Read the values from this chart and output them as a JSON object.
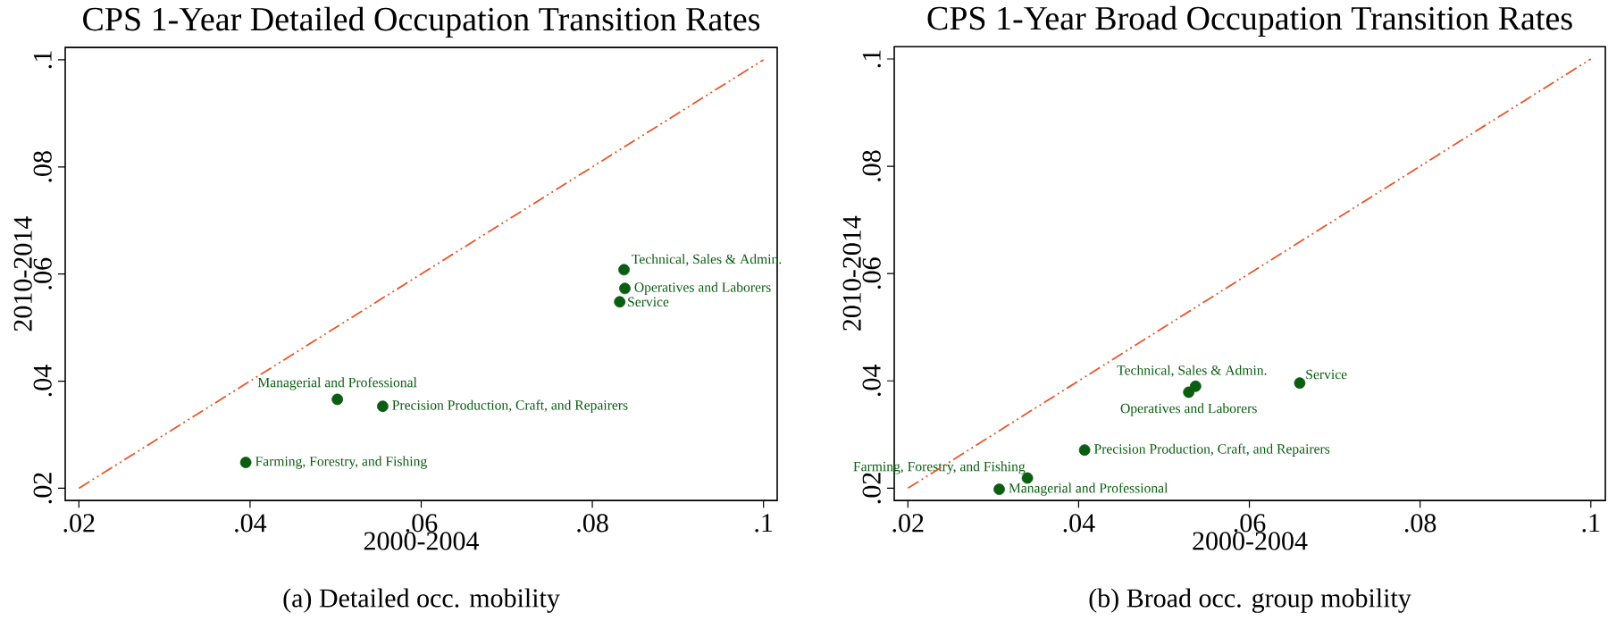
{
  "chart_data": [
    {
      "type": "scatter",
      "title": "CPS 1-Year Detailed Occupation Transition Rates",
      "xlabel": "2000-2004",
      "ylabel": "2010-2014",
      "xlim": [
        0.0184,
        0.1016
      ],
      "ylim": [
        0.0177,
        0.1023
      ],
      "xticks": [
        {
          "value": 0.02,
          "label": ".02"
        },
        {
          "value": 0.04,
          "label": ".04"
        },
        {
          "value": 0.06,
          "label": ".06"
        },
        {
          "value": 0.08,
          "label": ".08"
        },
        {
          "value": 0.1,
          "label": ".1"
        }
      ],
      "yticks": [
        {
          "value": 0.02,
          "label": ".02"
        },
        {
          "value": 0.04,
          "label": ".04"
        },
        {
          "value": 0.06,
          "label": ".06"
        },
        {
          "value": 0.08,
          "label": ".08"
        },
        {
          "value": 0.1,
          "label": ".1"
        }
      ],
      "series": [
        {
          "name": "Farming, Forestry, and Fishing",
          "color": "#0b5d12",
          "marker": "circle",
          "x": [
            0.0395
          ],
          "values": [
            0.0248
          ]
        },
        {
          "name": "Managerial and Professional",
          "color": "#0b5d12",
          "marker": "circle",
          "x": [
            0.0502
          ],
          "values": [
            0.0366
          ]
        },
        {
          "name": "Precision Production, Craft, and Repairers",
          "color": "#0b5d12",
          "marker": "circle",
          "x": [
            0.0555
          ],
          "values": [
            0.0353
          ]
        },
        {
          "name": "Technical, Sales & Admin.",
          "color": "#0b5d12",
          "marker": "circle",
          "x": [
            0.0837
          ],
          "values": [
            0.0608
          ]
        },
        {
          "name": "Operatives and Laborers",
          "color": "#0b5d12",
          "marker": "circle",
          "x": [
            0.0838
          ],
          "values": [
            0.0573
          ]
        },
        {
          "name": "Service",
          "color": "#0b5d12",
          "marker": "circle",
          "x": [
            0.0832
          ],
          "values": [
            0.0548
          ]
        },
        {
          "type": "line",
          "color": "#e8562a",
          "line_style": "dashed",
          "marker": "none",
          "x": [
            0.02,
            0.1
          ],
          "values": [
            0.02,
            0.1
          ]
        }
      ],
      "annotations": [
        "(a) Detailed occ. mobility"
      ]
    },
    {
      "type": "scatter",
      "title": "CPS 1-Year Broad Occupation Transition Rates",
      "xlabel": "2000-2004",
      "ylabel": "2010-2014",
      "xlim": [
        0.0184,
        0.1017
      ],
      "ylim": [
        0.0177,
        0.1023
      ],
      "xticks": [
        {
          "value": 0.02,
          "label": ".02"
        },
        {
          "value": 0.04,
          "label": ".04"
        },
        {
          "value": 0.06,
          "label": ".06"
        },
        {
          "value": 0.08,
          "label": ".08"
        },
        {
          "value": 0.1,
          "label": ".1"
        }
      ],
      "yticks": [
        {
          "value": 0.02,
          "label": ".02"
        },
        {
          "value": 0.04,
          "label": ".04"
        },
        {
          "value": 0.06,
          "label": ".06"
        },
        {
          "value": 0.08,
          "label": ".08"
        },
        {
          "value": 0.1,
          "label": ".1"
        }
      ],
      "series": [
        {
          "name": "Farming, Forestry, and Fishing",
          "color": "#0b5d12",
          "marker": "circle",
          "x": [
            0.034
          ],
          "values": [
            0.0219
          ]
        },
        {
          "name": "Managerial and Professional",
          "color": "#0b5d12",
          "marker": "circle",
          "x": [
            0.0307
          ],
          "values": [
            0.0198
          ]
        },
        {
          "name": "Precision Production, Craft, and Repairers",
          "color": "#0b5d12",
          "marker": "circle",
          "x": [
            0.0407
          ],
          "values": [
            0.0271
          ]
        },
        {
          "name": "Technical, Sales & Admin.",
          "color": "#0b5d12",
          "marker": "circle",
          "x": [
            0.0537
          ],
          "values": [
            0.039
          ]
        },
        {
          "name": "Operatives and Laborers",
          "color": "#0b5d12",
          "marker": "circle",
          "x": [
            0.0529
          ],
          "values": [
            0.0379
          ]
        },
        {
          "name": "Service",
          "color": "#0b5d12",
          "marker": "circle",
          "x": [
            0.0659
          ],
          "values": [
            0.0396
          ]
        },
        {
          "type": "line",
          "color": "#e8562a",
          "line_style": "dashed",
          "marker": "none",
          "x": [
            0.02,
            0.1
          ],
          "values": [
            0.02,
            0.1
          ]
        }
      ],
      "annotations": [
        "(b) Broad occ. group mobility"
      ]
    }
  ]
}
